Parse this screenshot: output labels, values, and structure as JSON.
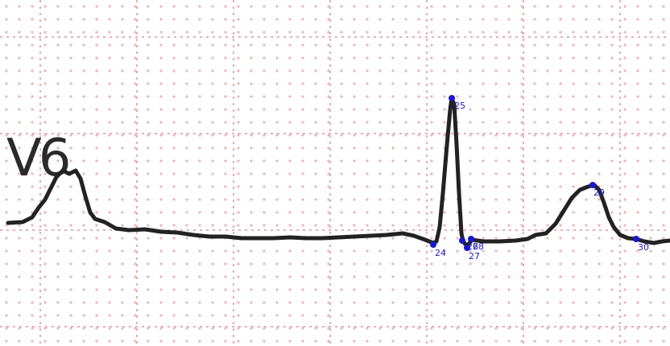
{
  "lead_label": "V6",
  "colors": {
    "grid_major": "#e58a92",
    "grid_dot": "#f1b3b8",
    "trace": "#222222",
    "marker": "#1717d6",
    "marker_text": "#1a1adc"
  },
  "markers": [
    {
      "id": "24",
      "label": "24"
    },
    {
      "id": "25",
      "label": "25"
    },
    {
      "id": "26",
      "label": "26"
    },
    {
      "id": "27",
      "label": "27"
    },
    {
      "id": "28",
      "label": "28"
    },
    {
      "id": "29",
      "label": "29"
    },
    {
      "id": "30",
      "label": "30"
    }
  ]
}
